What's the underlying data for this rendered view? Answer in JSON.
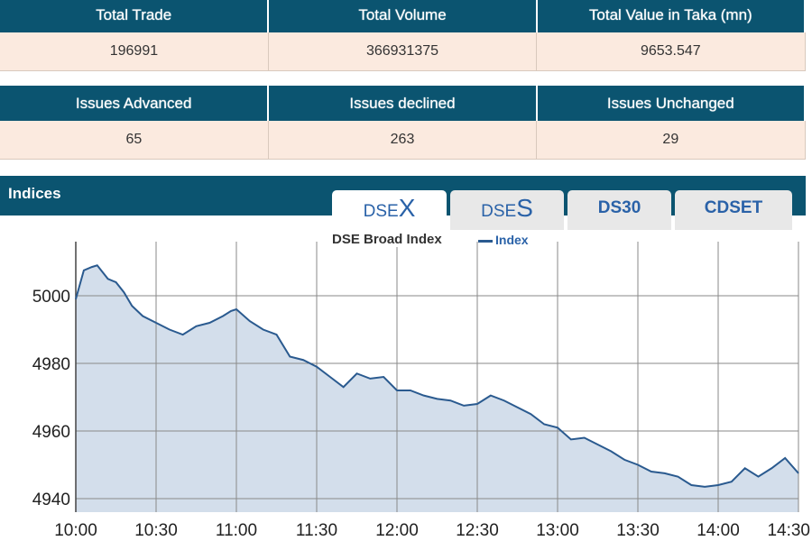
{
  "market_summary": {
    "headers": [
      "Total Trade",
      "Total Volume",
      "Total Value in Taka (mn)"
    ],
    "values": [
      "196991",
      "366931375",
      "9653.547"
    ]
  },
  "issues_summary": {
    "headers": [
      "Issues Advanced",
      "Issues declined",
      "Issues Unchanged"
    ],
    "values": [
      "65",
      "263",
      "29"
    ]
  },
  "indices": {
    "label": "Indices",
    "tabs": [
      {
        "prefix": "DSE",
        "suffix": "X",
        "active": true
      },
      {
        "prefix": "DSE",
        "suffix": "S",
        "active": false
      },
      {
        "prefix": "DS30",
        "suffix": "",
        "active": false
      },
      {
        "prefix": "CDSET",
        "suffix": "",
        "active": false
      }
    ]
  },
  "colors": {
    "header": "#0b5470",
    "row": "#fbeadf",
    "line": "#2a5a8f",
    "fill": "#d3deeb"
  },
  "chart_data": {
    "type": "area",
    "title": "DSE Broad Index",
    "legend": {
      "entries": [
        "Index"
      ],
      "placement": "top-center"
    },
    "xlabel": "",
    "ylabel": "",
    "grid": true,
    "x_ticks": [
      "10:00",
      "10:30",
      "11:00",
      "11:30",
      "12:00",
      "12:30",
      "13:00",
      "13:30",
      "14:00",
      "14:30"
    ],
    "y_ticks": [
      5000,
      4980,
      4960,
      4940
    ],
    "ylim": [
      4936,
      5016
    ],
    "xlim": [
      "10:00",
      "14:30"
    ],
    "series": [
      {
        "name": "Index",
        "x": [
          "10:00",
          "10:03",
          "10:06",
          "10:08",
          "10:12",
          "10:15",
          "10:18",
          "10:21",
          "10:25",
          "10:30",
          "10:35",
          "10:40",
          "10:45",
          "10:50",
          "10:55",
          "10:58",
          "11:00",
          "11:05",
          "11:10",
          "11:15",
          "11:20",
          "11:25",
          "11:30",
          "11:35",
          "11:40",
          "11:45",
          "11:50",
          "11:55",
          "12:00",
          "12:05",
          "12:10",
          "12:15",
          "12:20",
          "12:25",
          "12:30",
          "12:35",
          "12:40",
          "12:45",
          "12:50",
          "12:55",
          "13:00",
          "13:05",
          "13:10",
          "13:15",
          "13:20",
          "13:25",
          "13:30",
          "13:35",
          "13:40",
          "13:45",
          "13:50",
          "13:55",
          "14:00",
          "14:05",
          "14:10",
          "14:15",
          "14:20",
          "14:25",
          "14:30"
        ],
        "values": [
          4999,
          5007.5,
          5008.5,
          5009,
          5005,
          5004,
          5001,
          4997,
          4994,
          4992,
          4990,
          4988.5,
          4991,
          4992,
          4994,
          4995.5,
          4996,
          4992.5,
          4990,
          4988.5,
          4982,
          4981,
          4979,
          4976,
          4973,
          4977,
          4975.5,
          4976,
          4972,
          4972,
          4970.5,
          4969.5,
          4969,
          4967.5,
          4968,
          4970.5,
          4969,
          4967,
          4965,
          4962,
          4961,
          4957.5,
          4958,
          4956,
          4954,
          4951.5,
          4950,
          4948,
          4947.5,
          4946.5,
          4944,
          4943.5,
          4944,
          4945,
          4949,
          4946.5,
          4949,
          4952,
          4947.5
        ]
      }
    ]
  }
}
